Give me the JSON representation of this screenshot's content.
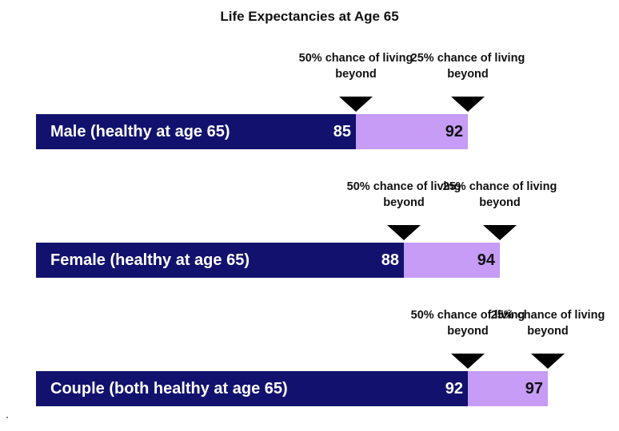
{
  "chart_data": {
    "type": "bar",
    "title": "Life Expectancies at Age 65",
    "bar_colors": {
      "median": "#12126e",
      "quartile": "#c69cf6"
    },
    "rows": [
      {
        "label": "Male (healthy at age 65)",
        "median_age": 85,
        "quartile_age": 92,
        "median_note": "50% chance of living beyond",
        "quartile_note": "25% chance of living beyond"
      },
      {
        "label": "Female (healthy at age 65)",
        "median_age": 88,
        "quartile_age": 94,
        "median_note": "50% chance of living beyond",
        "quartile_note": "25% chance of living beyond"
      },
      {
        "label": "Couple (both healthy at age 65)",
        "median_age": 92,
        "quartile_age": 97,
        "median_note": "50% chance of living beyond",
        "quartile_note": "25% chance of living beyond"
      }
    ]
  }
}
